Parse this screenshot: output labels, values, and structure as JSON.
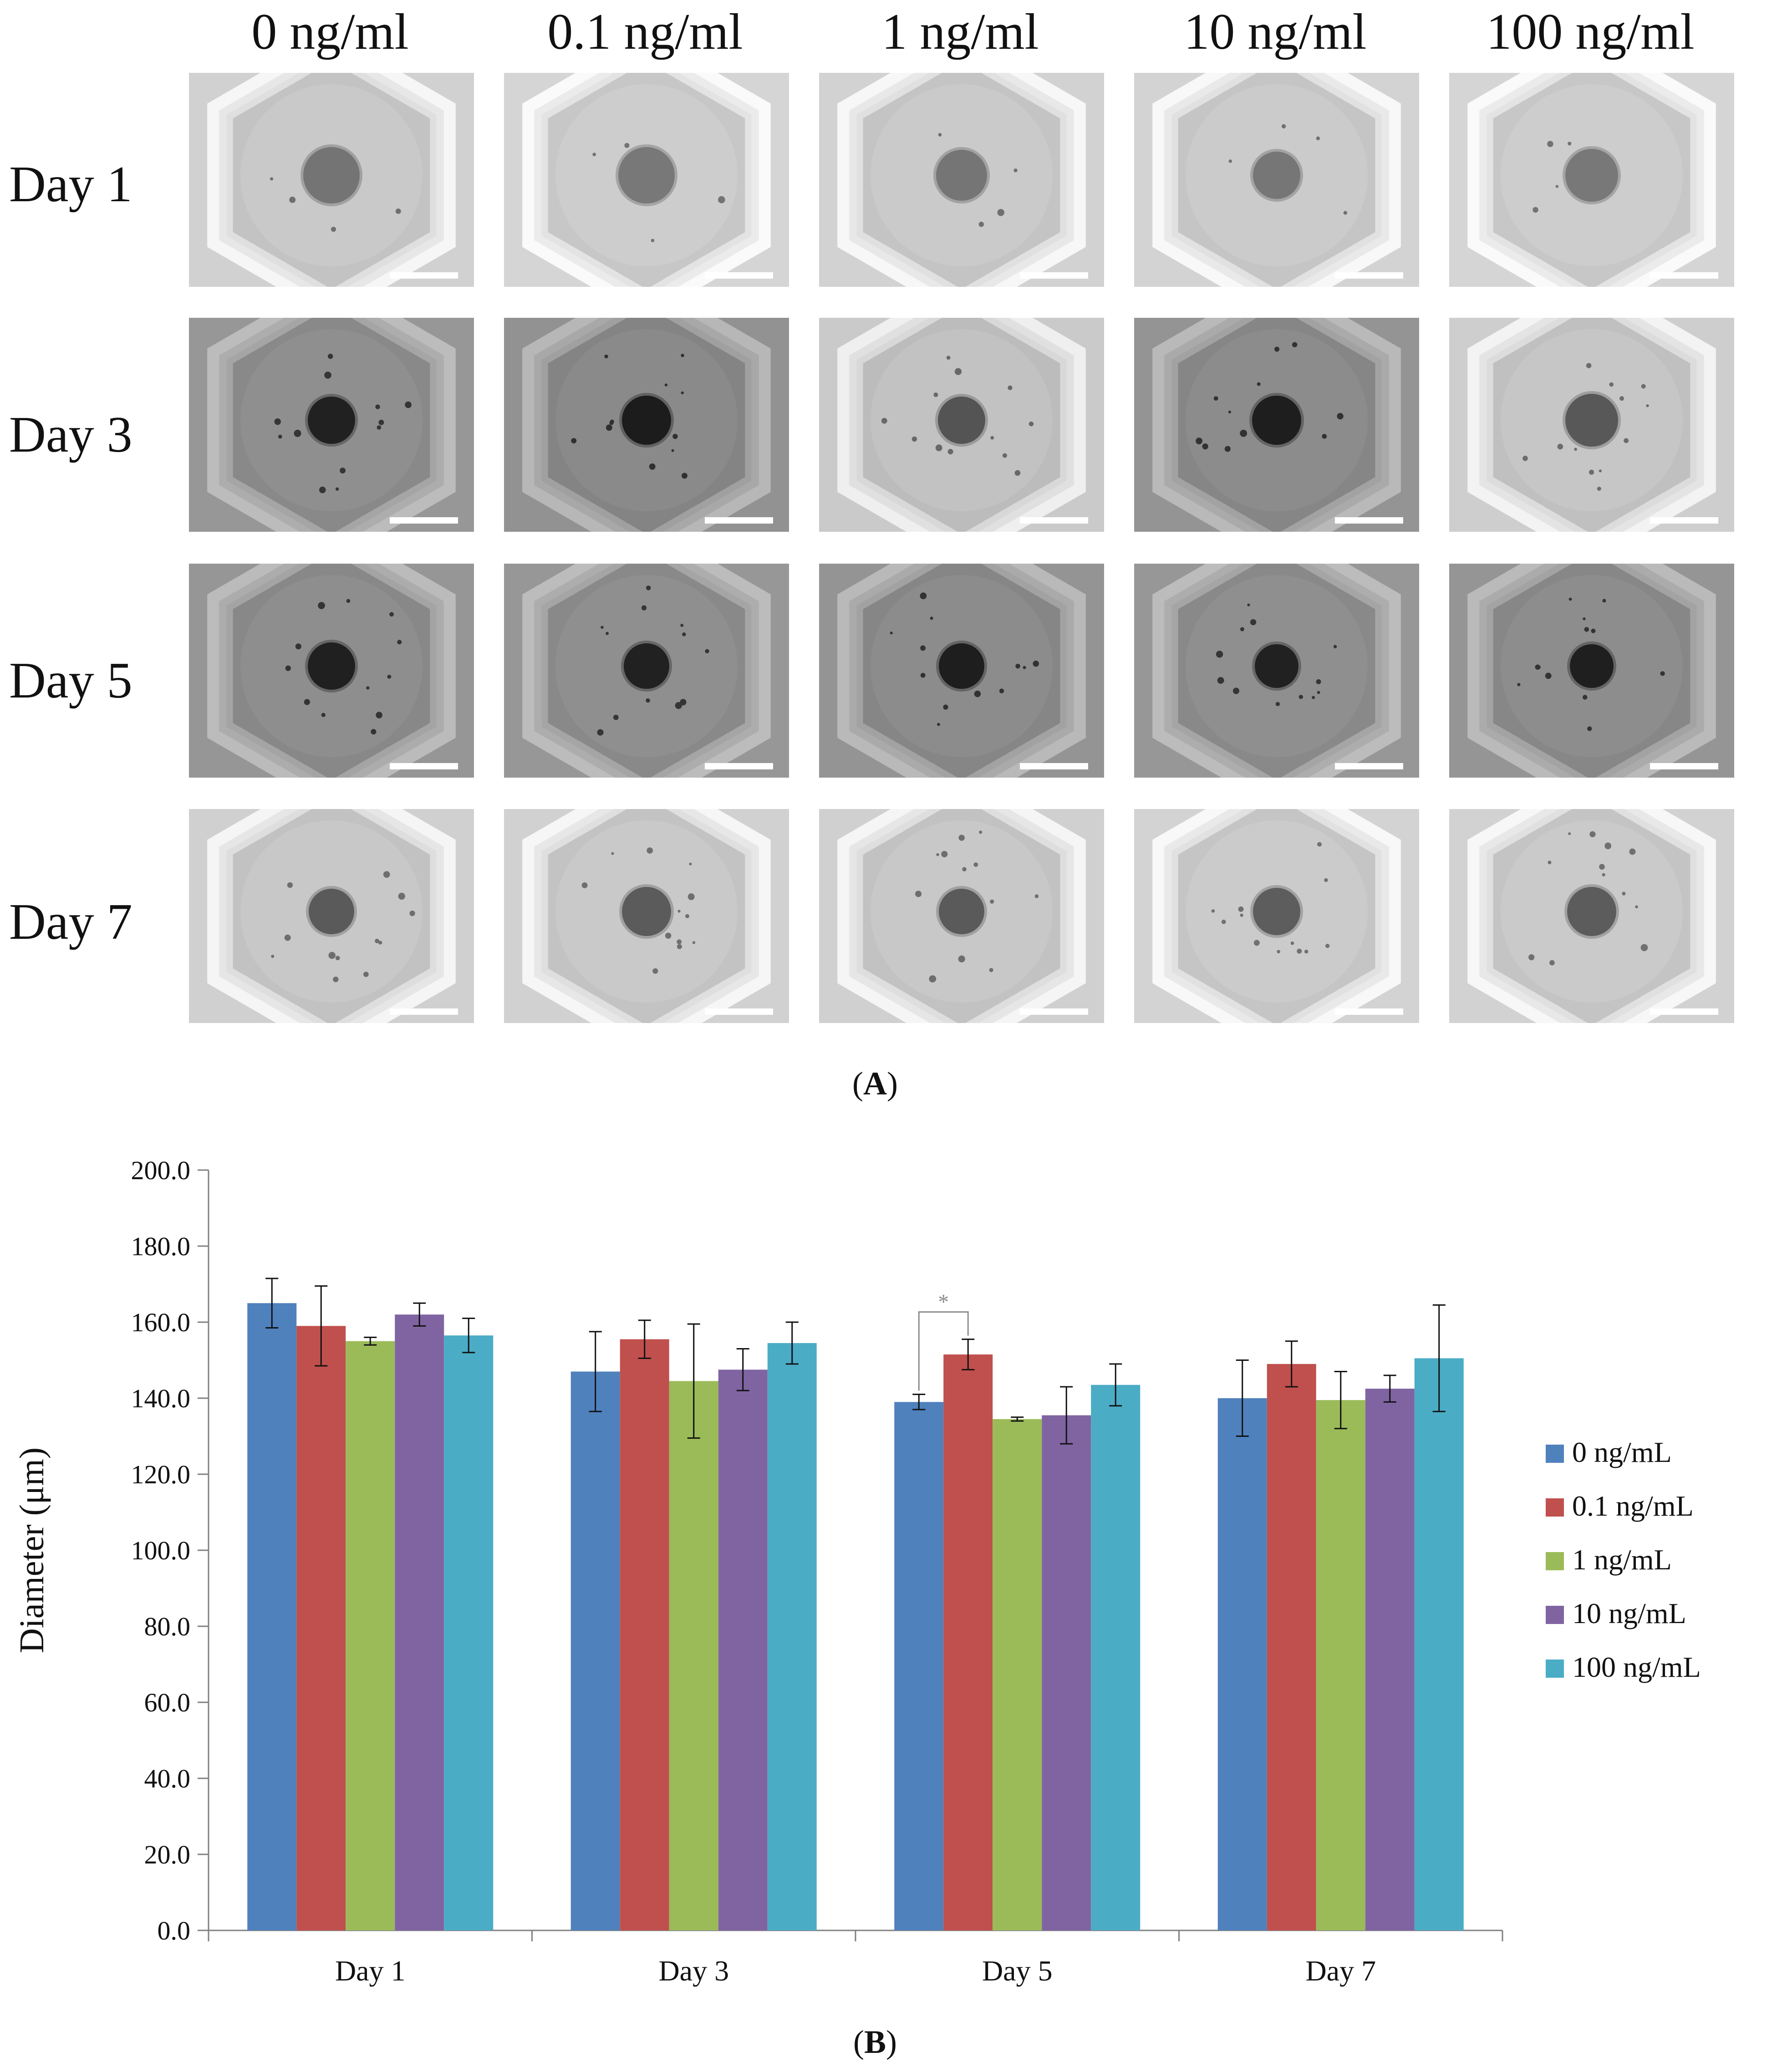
{
  "panel_a": {
    "label": "A",
    "columns": [
      "0 ng/ml",
      "0.1 ng/ml",
      "1 ng/ml",
      "10 ng/ml",
      "100 ng/ml"
    ],
    "rows": [
      "Day 1",
      "Day 3",
      "Day 5",
      "Day 7"
    ]
  },
  "panel_b": {
    "label": "B"
  },
  "chart_data": {
    "type": "bar",
    "title": "",
    "xlabel": "",
    "ylabel": "Diameter (μm)",
    "ylim": [
      0,
      200
    ],
    "y_ticks": [
      "0.0",
      "20.0",
      "40.0",
      "60.0",
      "80.0",
      "100.0",
      "120.0",
      "140.0",
      "160.0",
      "180.0",
      "200.0"
    ],
    "categories": [
      "Day 1",
      "Day 3",
      "Day 5",
      "Day 7"
    ],
    "series": [
      {
        "name": "0 ng/mL",
        "color": "#4f81bd",
        "values": [
          165.0,
          147.0,
          139.0,
          140.0
        ],
        "errors": [
          6.5,
          10.5,
          2.0,
          10.0
        ]
      },
      {
        "name": "0.1 ng/mL",
        "color": "#c0504d",
        "values": [
          159.0,
          155.5,
          151.5,
          149.0
        ],
        "errors": [
          10.5,
          5.0,
          4.0,
          6.0
        ]
      },
      {
        "name": "1 ng/mL",
        "color": "#9bbb59",
        "values": [
          155.0,
          144.5,
          134.5,
          139.5
        ],
        "errors": [
          1.0,
          15.0,
          0.5,
          7.5
        ]
      },
      {
        "name": "10 ng/mL",
        "color": "#8064a2",
        "values": [
          162.0,
          147.5,
          135.5,
          142.5
        ],
        "errors": [
          3.0,
          5.5,
          7.5,
          3.5
        ]
      },
      {
        "name": "100 ng/mL",
        "color": "#4bacc6",
        "values": [
          156.5,
          154.5,
          143.5,
          150.5
        ],
        "errors": [
          4.5,
          5.5,
          5.5,
          14.0
        ]
      }
    ],
    "significance": {
      "label": "*",
      "category": "Day 5",
      "between": [
        "0 ng/mL",
        "0.1 ng/mL"
      ]
    },
    "legend_position": "right"
  }
}
